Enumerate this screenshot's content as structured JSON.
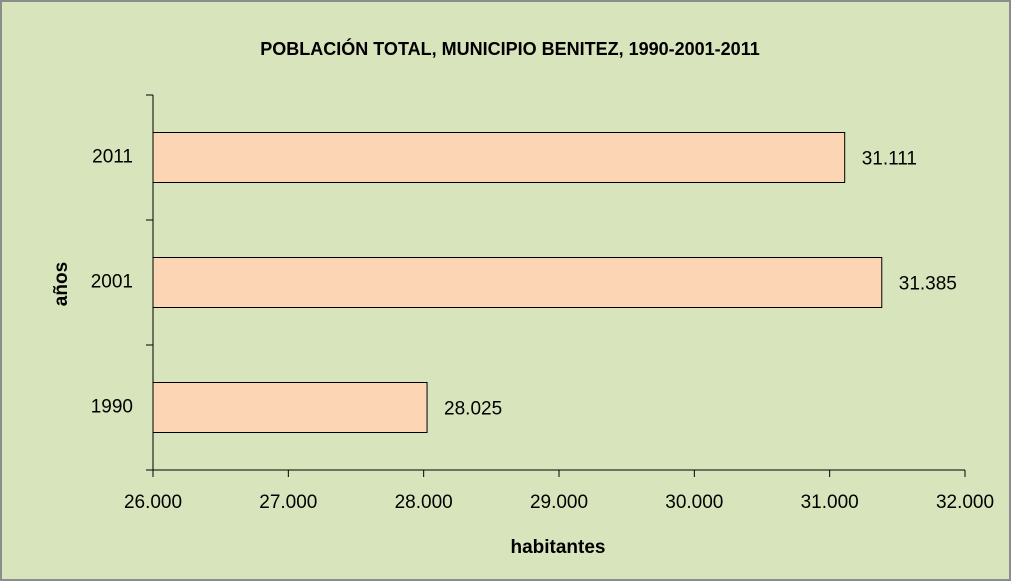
{
  "chart_data": {
    "type": "barh",
    "title": "POBLACIÓN TOTAL, MUNICIPIO BENITEZ, 1990-2001-2011",
    "xlabel": "habitantes",
    "ylabel": "años",
    "categories": [
      "1990",
      "2001",
      "2011"
    ],
    "values": [
      28025,
      31385,
      31111
    ],
    "value_labels": [
      "28.025",
      "31.385",
      "31.111"
    ],
    "color": "#fcd5b4",
    "xlim": [
      26000,
      32000
    ],
    "xticks": [
      {
        "value": 26000,
        "label": "26.000"
      },
      {
        "value": 27000,
        "label": "27.000"
      },
      {
        "value": 28000,
        "label": "28.000"
      },
      {
        "value": 29000,
        "label": "29.000"
      },
      {
        "value": 30000,
        "label": "30.000"
      },
      {
        "value": 31000,
        "label": "31.000"
      },
      {
        "value": 32000,
        "label": "32.000"
      }
    ],
    "grid": false
  }
}
